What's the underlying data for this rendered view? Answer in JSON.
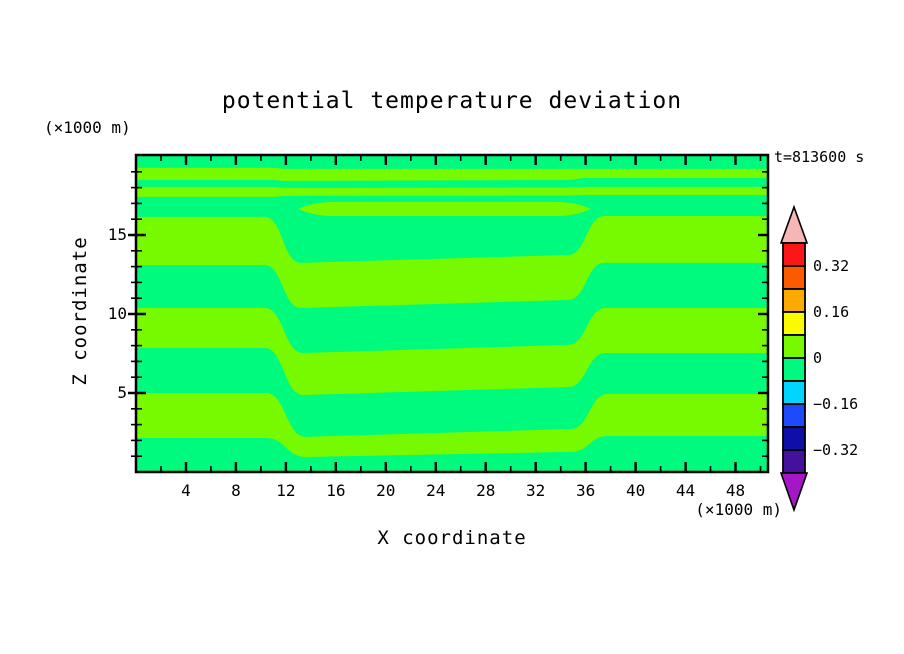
{
  "chart_data": {
    "type": "heatmap",
    "subtype": "filled-contour",
    "title": "potential temperature deviation",
    "time_label": "t=813600 s",
    "xlabel": "X coordinate",
    "ylabel": "Z coordinate",
    "x_unit_label": "(×1000 m)",
    "y_unit_label": "(×1000 m)",
    "x_range": [
      0,
      50.6
    ],
    "z_range": [
      0,
      20.06
    ],
    "x_major_ticks": [
      4,
      8,
      12,
      16,
      20,
      24,
      28,
      32,
      36,
      40,
      44,
      48
    ],
    "x_minor_step": 2,
    "y_major_ticks": [
      5,
      10,
      15
    ],
    "y_minor_step": 1,
    "grid": false,
    "contour_interval": 0.08,
    "visible_field_range": [
      -0.08,
      0.08
    ],
    "field_colors": {
      "positive_band": "#77fa00",
      "negative_band": "#00fa7e",
      "positive_value_range": [
        0,
        0.08
      ],
      "negative_value_range": [
        -0.08,
        0
      ]
    },
    "step_fronts_x": [
      11.7,
      36.0
    ],
    "bands_note": "positive (chartreuse) bands drawn over negative (spring-green) background; z values in km (x1000 m)",
    "bands": [
      {
        "tl": 19.25,
        "tm": 19.18,
        "tm2": 19.18,
        "tr": 19.18,
        "bl": 18.48,
        "bm": 18.42,
        "bm2": 18.48,
        "br": 18.61,
        "sx": [
          10.6,
          12.2,
          34.3,
          36.3
        ]
      },
      {
        "tl": 18.04,
        "tm": 17.97,
        "tm2": 18.0,
        "tr": 18.04,
        "bl": 17.41,
        "bm": 17.47,
        "bm2": 17.5,
        "br": 17.53,
        "sx": [
          10.6,
          12.3,
          34.3,
          36.3
        ]
      },
      {
        "tl": 16.14,
        "tm": 13.23,
        "tm2": 13.73,
        "tr": 16.2,
        "bl": 13.1,
        "bm": 10.38,
        "bm2": 10.89,
        "br": 13.23,
        "sx": [
          10.3,
          13.2,
          34.6,
          37.5
        ]
      },
      {
        "tl": 10.38,
        "tm": 7.53,
        "tm2": 8.04,
        "tr": 10.38,
        "bl": 7.85,
        "bm": 4.87,
        "bm2": 5.38,
        "br": 7.53,
        "sx": [
          10.3,
          13.4,
          34.6,
          37.6
        ]
      },
      {
        "tl": 5.0,
        "tm": 2.22,
        "tm2": 2.72,
        "tr": 4.94,
        "bl": 2.15,
        "bm": 0.95,
        "bm2": 1.27,
        "br": 2.28,
        "sx": [
          10.4,
          13.6,
          34.8,
          37.8
        ]
      }
    ],
    "lens_band": {
      "t": 17.09,
      "b": 16.2,
      "x0": 13.0,
      "x1": 36.4
    },
    "colorbar": {
      "labels": [
        "0.32",
        "0.16",
        "0",
        "−0.16",
        "−0.32"
      ],
      "labeled_boundary_values": [
        0.32,
        0.16,
        0,
        -0.16,
        -0.32
      ],
      "cell_boundaries": [
        0.4,
        0.32,
        0.24,
        0.16,
        0.08,
        0,
        -0.08,
        -0.16,
        -0.24,
        -0.32,
        -0.4
      ],
      "cell_colors": [
        "#fb1717",
        "#fc5a00",
        "#fcaa00",
        "#fbfb00",
        "#77fa00",
        "#00fa7e",
        "#00d5fe",
        "#1e4bfa",
        "#0f0fa8",
        "#43119e"
      ],
      "arrow_top_color": "#f6b6b6",
      "arrow_bottom_color": "#a517c4"
    }
  }
}
